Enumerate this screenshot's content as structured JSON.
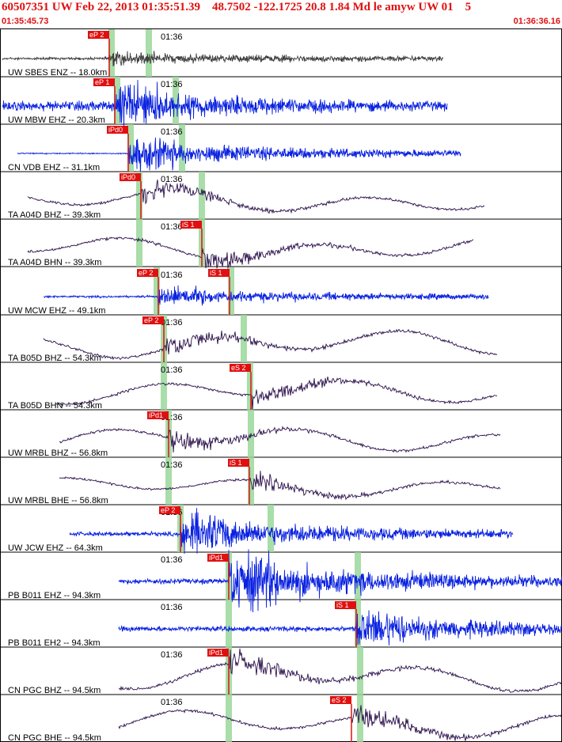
{
  "header": {
    "title": "60507351 UW Feb 22, 2013 01:35:51.39    48.7502 -122.1725 20.8 1.84 Md le amyw UW 01    5",
    "start_time": "01:35:45.73",
    "end_time": "01:36:36.16"
  },
  "colors": {
    "header_text": "#e01010",
    "pick_box": "#e01010",
    "pick_text": "#ffffff",
    "ehz_trace": "#0a22e0",
    "bh_trace": "#2a0f4a",
    "sbes_trace": "#404040",
    "theoretical_arrival": "#9ad79a",
    "frame": "#000000"
  },
  "chart_data": {
    "type": "seismogram",
    "x_axis": {
      "tick_label": "01:36"
    },
    "traces": [
      {
        "label": "UW SBES ENZ -- 18.0km",
        "color_key": "sbes_trace",
        "picks": [
          "eP 2"
        ]
      },
      {
        "label": "UW MBW EHZ -- 20.3km",
        "color_key": "ehz_trace",
        "picks": [
          "eP 1"
        ]
      },
      {
        "label": "CN VDB EHZ -- 31.1km",
        "color_key": "ehz_trace",
        "picks": [
          "iPd0"
        ]
      },
      {
        "label": "TA A04D BHZ -- 39.3km",
        "color_key": "bh_trace",
        "picks": [
          "iPd0"
        ]
      },
      {
        "label": "TA A04D BHN -- 39.3km",
        "color_key": "bh_trace",
        "picks": [
          "iS 1"
        ]
      },
      {
        "label": "UW MCW EHZ -- 49.1km",
        "color_key": "ehz_trace",
        "picks": [
          "eP 2",
          "iS 1"
        ]
      },
      {
        "label": "TA B05D BHZ -- 54.3km",
        "color_key": "bh_trace",
        "picks": [
          "eP 2"
        ]
      },
      {
        "label": "TA B05D BHN -- 54.3km",
        "color_key": "bh_trace",
        "picks": [
          "eS 2"
        ]
      },
      {
        "label": "UW MRBL BHZ -- 56.8km",
        "color_key": "bh_trace",
        "picks": [
          "iPd1"
        ]
      },
      {
        "label": "UW MRBL BHE -- 56.8km",
        "color_key": "bh_trace",
        "picks": [
          "iS 1"
        ]
      },
      {
        "label": "UW JCW EHZ -- 64.3km",
        "color_key": "ehz_trace",
        "picks": [
          "eP 2"
        ]
      },
      {
        "label": "PB B011 EHZ -- 94.3km",
        "color_key": "ehz_trace",
        "picks": [
          "iPd1"
        ]
      },
      {
        "label": "PB B011 EH2 -- 94.3km",
        "color_key": "ehz_trace",
        "picks": [
          "iS 1"
        ]
      },
      {
        "label": "CN PGC BHZ -- 94.5km",
        "color_key": "bh_trace",
        "picks": [
          "iPd1"
        ]
      },
      {
        "label": "CN PGC BHE -- 94.5km",
        "color_key": "bh_trace",
        "picks": [
          "eS 2"
        ]
      }
    ]
  }
}
